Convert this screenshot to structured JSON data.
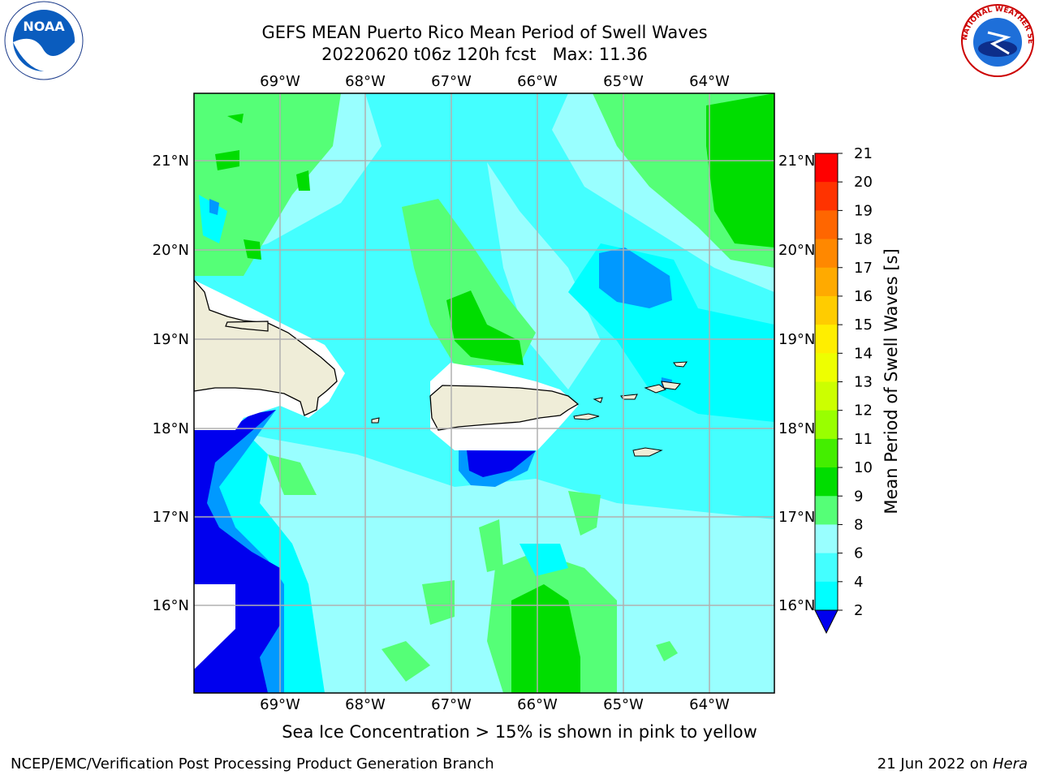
{
  "title_line1": "GEFS MEAN Puerto Rico Mean Period of Swell Waves",
  "title_line2": "20220620 t06z 120h fcst   Max: 11.36",
  "lon_labels": [
    "69°W",
    "68°W",
    "67°W",
    "66°W",
    "65°W",
    "64°W"
  ],
  "lat_labels": [
    "21°N",
    "20°N",
    "19°N",
    "18°N",
    "17°N",
    "16°N"
  ],
  "colorbar": {
    "label": "Mean Period of Swell Waves [s]",
    "ticks": [
      21,
      20,
      19,
      18,
      17,
      16,
      15,
      14,
      13,
      12,
      11,
      10,
      9,
      8,
      6,
      4,
      2
    ],
    "colors": [
      "#ff0000",
      "#ff3300",
      "#ff6600",
      "#ff8800",
      "#ffaa00",
      "#ffcc00",
      "#ffee00",
      "#eeff00",
      "#ccff00",
      "#99ff00",
      "#44ee00",
      "#00dd00",
      "#55ff77",
      "#99ffff",
      "#44ffff",
      "#00ffff",
      "#0099ff",
      "#0044ff",
      "#0000ee"
    ]
  },
  "caption": "Sea Ice Concentration > 15% is shown in pink to yellow",
  "footer_left": "NCEP/EMC/Verification Post Processing Product Generation Branch",
  "footer_date": "21 Jun 2022 on ",
  "footer_machine": "Hera",
  "logos": {
    "noaa": "NOAA",
    "nws": "NATIONAL WEATHER SERVICE"
  }
}
